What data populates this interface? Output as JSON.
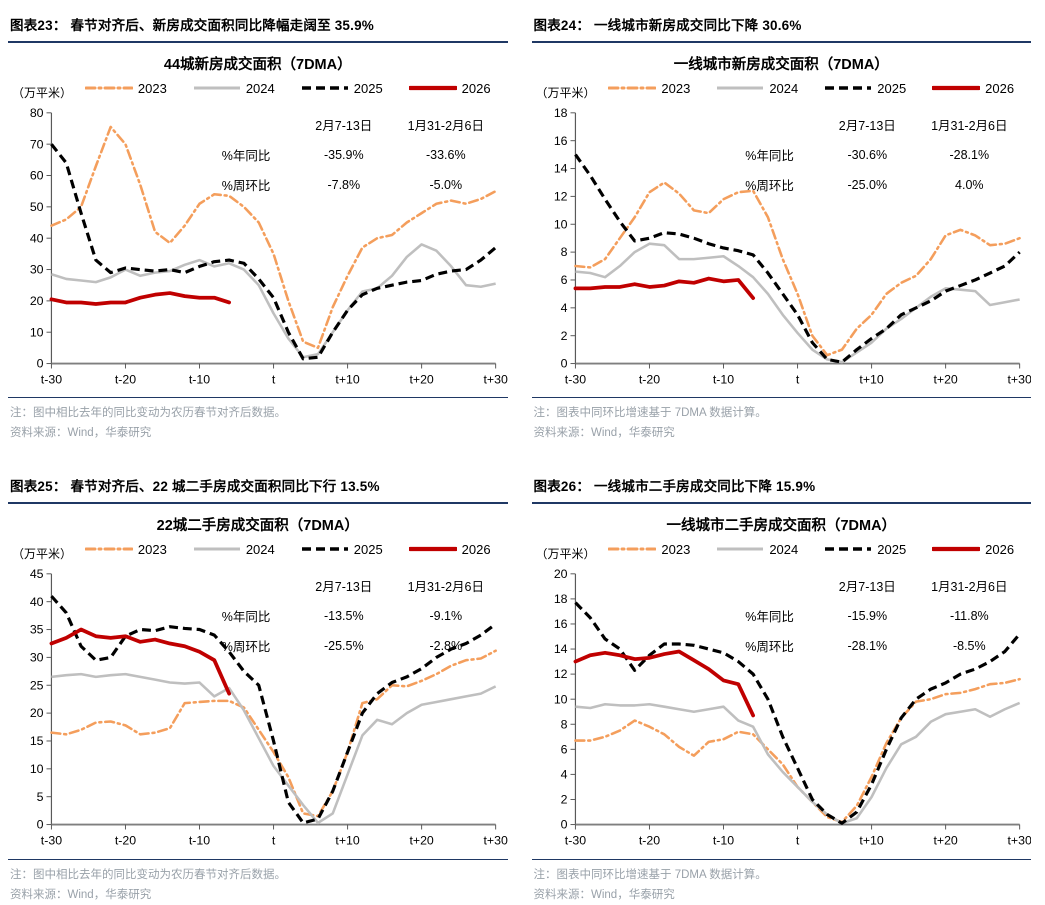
{
  "page": {
    "background": "#ffffff"
  },
  "styles": {
    "header_rule_color": "#1F3864",
    "note_color": "#99A1A9",
    "axis_color": "#7F7F7F",
    "series_colors": {
      "y2023": "#F49E5C",
      "y2024": "#BFBFBF",
      "y2025": "#000000",
      "y2026": "#C00000"
    }
  },
  "figures": [
    {
      "id": "figure-23",
      "header": "图表23：  春节对齐后、新房成交面积同比降幅走阔至 35.9%",
      "notes": [
        "注：图中相比去年的同比变动为农历春节对齐后数据。",
        "资料来源：Wind，华泰研究"
      ],
      "chart_data": {
        "type": "line",
        "title": "44城新房成交面积（7DMA）",
        "unit": "（万平米）",
        "grid": false,
        "legend_position": "top",
        "x_start": -30,
        "x_step": 2,
        "xtick_values": [
          -30,
          -20,
          -10,
          0,
          10,
          20,
          30
        ],
        "xtick_labels": [
          "t-30",
          "t-20",
          "t-10",
          "t",
          "t+10",
          "t+20",
          "t+30"
        ],
        "ylim": [
          0,
          80
        ],
        "ytick_step": 10,
        "series": [
          {
            "name": "2023",
            "color": "#F49E5C",
            "style": "dashdot",
            "values": [
              44,
              46,
              50,
              63,
              75.5,
              70,
              57,
              42,
              38.5,
              44,
              51,
              54,
              53.5,
              50,
              45,
              35,
              20,
              7,
              5,
              18,
              28,
              37,
              40,
              41,
              45,
              48,
              51,
              52,
              51,
              52.5,
              55
            ]
          },
          {
            "name": "2024",
            "color": "#BFBFBF",
            "style": "solid",
            "values": [
              28.5,
              27,
              26.5,
              26,
              27.5,
              30,
              28,
              29,
              29.5,
              31.5,
              33,
              31,
              32,
              30,
              25,
              16,
              8,
              2,
              3,
              10,
              17,
              23,
              24,
              28,
              34,
              38,
              36,
              31,
              25,
              24.5,
              25.5
            ]
          },
          {
            "name": "2025",
            "color": "#000000",
            "style": "dashed",
            "values": [
              70,
              64,
              48,
              33,
              29,
              30.5,
              30,
              29.5,
              30,
              29,
              31,
              32.5,
              33,
              32,
              27,
              21,
              10,
              1.5,
              2,
              10,
              17,
              22,
              24,
              25,
              26,
              26.5,
              28.5,
              29.5,
              30,
              33,
              37
            ]
          },
          {
            "name": "2026",
            "color": "#C00000",
            "style": "thick",
            "values": [
              20.5,
              19.5,
              19.5,
              19,
              19.5,
              19.5,
              21,
              22,
              22.5,
              21.5,
              21,
              21,
              19.5,
              null,
              null,
              null,
              null,
              null,
              null,
              null,
              null,
              null,
              null,
              null,
              null,
              null,
              null,
              null,
              null,
              null,
              null
            ]
          }
        ],
        "stats": {
          "col_headers": [
            "2月7-13日",
            "1月31-2月6日"
          ],
          "rows": [
            {
              "label": "%年同比",
              "values": [
                "-35.9%",
                "-33.6%"
              ]
            },
            {
              "label": "%周环比",
              "values": [
                "-7.8%",
                "-5.0%"
              ]
            }
          ]
        }
      }
    },
    {
      "id": "figure-24",
      "header": "图表24：  一线城市新房成交同比下降 30.6%",
      "notes": [
        "注：图表中同环比增速基于 7DMA 数据计算。",
        "资料来源：Wind，华泰研究"
      ],
      "chart_data": {
        "type": "line",
        "title": "一线城市新房成交面积（7DMA）",
        "unit": "（万平米）",
        "grid": false,
        "legend_position": "top",
        "x_start": -30,
        "x_step": 2,
        "xtick_values": [
          -30,
          -20,
          -10,
          0,
          10,
          20,
          30
        ],
        "xtick_labels": [
          "t-30",
          "t-20",
          "t-10",
          "t",
          "t+10",
          "t+20",
          "t+30"
        ],
        "ylim": [
          0,
          18
        ],
        "ytick_step": 2,
        "series": [
          {
            "name": "2023",
            "color": "#F49E5C",
            "style": "dashdot",
            "values": [
              7,
              6.9,
              7.5,
              9,
              10.5,
              12.3,
              13,
              12.2,
              11,
              10.8,
              11.8,
              12.3,
              12.4,
              10.5,
              7.5,
              5,
              2,
              0.6,
              1,
              2.5,
              3.5,
              5,
              5.8,
              6.3,
              7.5,
              9.2,
              9.6,
              9.2,
              8.5,
              8.6,
              9
            ]
          },
          {
            "name": "2024",
            "color": "#BFBFBF",
            "style": "solid",
            "values": [
              6.6,
              6.5,
              6.2,
              7,
              8,
              8.6,
              8.5,
              7.5,
              7.5,
              7.6,
              7.7,
              7,
              6.2,
              5,
              3.5,
              2.2,
              1,
              0.3,
              0.1,
              0.8,
              1.5,
              2.5,
              3.2,
              4,
              4.8,
              5.4,
              5.3,
              5.2,
              4.2,
              4.4,
              4.6
            ]
          },
          {
            "name": "2025",
            "color": "#000000",
            "style": "dashed",
            "values": [
              15,
              13.5,
              11.8,
              10.2,
              8.8,
              9,
              9.4,
              9.3,
              9,
              8.6,
              8.3,
              8.1,
              7.8,
              6.5,
              5,
              3.5,
              1.5,
              0.3,
              0.1,
              1,
              1.8,
              2.5,
              3.5,
              4,
              4.5,
              5.2,
              5.6,
              6,
              6.5,
              7,
              8
            ]
          },
          {
            "name": "2026",
            "color": "#C00000",
            "style": "thick",
            "values": [
              5.4,
              5.4,
              5.5,
              5.5,
              5.7,
              5.5,
              5.6,
              5.9,
              5.8,
              6.1,
              5.9,
              6,
              4.7,
              null,
              null,
              null,
              null,
              null,
              null,
              null,
              null,
              null,
              null,
              null,
              null,
              null,
              null,
              null,
              null,
              null,
              null
            ]
          }
        ],
        "stats": {
          "col_headers": [
            "2月7-13日",
            "1月31-2月6日"
          ],
          "rows": [
            {
              "label": "%年同比",
              "values": [
                "-30.6%",
                "-28.1%"
              ]
            },
            {
              "label": "%周环比",
              "values": [
                "-25.0%",
                "4.0%"
              ]
            }
          ]
        }
      }
    },
    {
      "id": "figure-25",
      "header": "图表25：  春节对齐后、22 城二手房成交面积同比下行 13.5%",
      "notes": [
        "注：图中相比去年的同比变动为农历春节对齐后数据。",
        "资料来源：Wind，华泰研究"
      ],
      "chart_data": {
        "type": "line",
        "title": "22城二手房成交面积（7DMA）",
        "unit": "（万平米）",
        "grid": false,
        "legend_position": "top",
        "x_start": -30,
        "x_step": 2,
        "xtick_values": [
          -30,
          -20,
          -10,
          0,
          10,
          20,
          30
        ],
        "xtick_labels": [
          "t-30",
          "t-20",
          "t-10",
          "t",
          "t+10",
          "t+20",
          "t+30"
        ],
        "ylim": [
          0,
          45
        ],
        "ytick_step": 5,
        "series": [
          {
            "name": "2023",
            "color": "#F49E5C",
            "style": "dashdot",
            "values": [
              16.5,
              16.2,
              17,
              18.3,
              18.5,
              17.8,
              16.2,
              16.5,
              17.3,
              21.8,
              22,
              22.2,
              22.2,
              21,
              17,
              13,
              8.5,
              2,
              1.5,
              6,
              13,
              21.8,
              22.5,
              25,
              24.8,
              25.8,
              27,
              28.5,
              29.5,
              29.8,
              31.2
            ]
          },
          {
            "name": "2024",
            "color": "#BFBFBF",
            "style": "solid",
            "values": [
              26.5,
              26.8,
              27,
              26.5,
              26.8,
              27,
              26.5,
              26,
              25.5,
              25.3,
              25.5,
              23,
              24.5,
              20.5,
              15.5,
              10.5,
              7,
              3.5,
              0.3,
              2,
              9,
              16,
              18.8,
              18,
              20,
              21.5,
              22,
              22.5,
              23,
              23.5,
              24.8
            ]
          },
          {
            "name": "2025",
            "color": "#000000",
            "style": "dashed",
            "values": [
              41,
              38,
              32,
              29.5,
              30,
              33.8,
              35,
              34.8,
              35.5,
              35.2,
              35,
              34,
              31,
              27.5,
              25,
              15,
              4,
              0.3,
              1,
              6,
              13,
              20,
              23.5,
              25.5,
              26.5,
              28,
              30,
              31.5,
              32.5,
              34,
              36
            ]
          },
          {
            "name": "2026",
            "color": "#C00000",
            "style": "thick",
            "values": [
              32.5,
              33.5,
              35,
              33.8,
              33.5,
              33.8,
              32.8,
              33.2,
              32.5,
              32,
              31,
              29.5,
              23.5,
              null,
              null,
              null,
              null,
              null,
              null,
              null,
              null,
              null,
              null,
              null,
              null,
              null,
              null,
              null,
              null,
              null,
              null
            ]
          }
        ],
        "stats": {
          "col_headers": [
            "2月7-13日",
            "1月31-2月6日"
          ],
          "rows": [
            {
              "label": "%年同比",
              "values": [
                "-13.5%",
                "-9.1%"
              ]
            },
            {
              "label": "%周环比",
              "values": [
                "-25.5%",
                "-2.8%"
              ]
            }
          ]
        }
      }
    },
    {
      "id": "figure-26",
      "header": "图表26：  一线城市二手房成交同比下降 15.9%",
      "notes": [
        "注：图表中同环比增速基于 7DMA 数据计算。",
        "资料来源：Wind，华泰研究"
      ],
      "chart_data": {
        "type": "line",
        "title": "一线城市二手房成交面积（7DMA）",
        "unit": "（万平米）",
        "grid": false,
        "legend_position": "top",
        "x_start": -30,
        "x_step": 2,
        "xtick_values": [
          -30,
          -20,
          -10,
          0,
          10,
          20,
          30
        ],
        "xtick_labels": [
          "t-30",
          "t-20",
          "t-10",
          "t",
          "t+10",
          "t+20",
          "t+30"
        ],
        "ylim": [
          0,
          20
        ],
        "ytick_step": 2,
        "series": [
          {
            "name": "2023",
            "color": "#F49E5C",
            "style": "dashdot",
            "values": [
              6.7,
              6.7,
              7,
              7.5,
              8.3,
              7.8,
              7.2,
              6.2,
              5.5,
              6.6,
              6.8,
              7.4,
              7.2,
              6,
              4.8,
              3,
              1.8,
              0.6,
              0.2,
              1.5,
              3.8,
              6.5,
              8.5,
              9.8,
              10,
              10.4,
              10.5,
              10.8,
              11.2,
              11.3,
              11.6
            ]
          },
          {
            "name": "2024",
            "color": "#BFBFBF",
            "style": "solid",
            "values": [
              9.4,
              9.3,
              9.6,
              9.5,
              9.5,
              9.6,
              9.4,
              9.2,
              9,
              9.2,
              9.4,
              8.3,
              7.8,
              5.6,
              4.2,
              3,
              1.8,
              0.8,
              0.1,
              0.5,
              2.2,
              4.5,
              6.4,
              7,
              8.2,
              8.8,
              9,
              9.2,
              8.6,
              9.2,
              9.7
            ]
          },
          {
            "name": "2025",
            "color": "#000000",
            "style": "dashed",
            "values": [
              17.7,
              16.5,
              14.8,
              14,
              12.3,
              13.5,
              14.4,
              14.4,
              14.3,
              14,
              13.7,
              13,
              12,
              10,
              7,
              4.5,
              2,
              0.8,
              0.1,
              1,
              3.2,
              6,
              8.5,
              10,
              10.8,
              11.3,
              12,
              12.4,
              13,
              13.8,
              15.2
            ]
          },
          {
            "name": "2026",
            "color": "#C00000",
            "style": "thick",
            "values": [
              13,
              13.5,
              13.7,
              13.5,
              13.2,
              13.3,
              13.6,
              13.8,
              13.1,
              12.4,
              11.5,
              11.2,
              8.7,
              null,
              null,
              null,
              null,
              null,
              null,
              null,
              null,
              null,
              null,
              null,
              null,
              null,
              null,
              null,
              null,
              null,
              null
            ]
          }
        ],
        "stats": {
          "col_headers": [
            "2月7-13日",
            "1月31-2月6日"
          ],
          "rows": [
            {
              "label": "%年同比",
              "values": [
                "-15.9%",
                "-11.8%"
              ]
            },
            {
              "label": "%周环比",
              "values": [
                "-28.1%",
                "-8.5%"
              ]
            }
          ]
        }
      }
    }
  ]
}
